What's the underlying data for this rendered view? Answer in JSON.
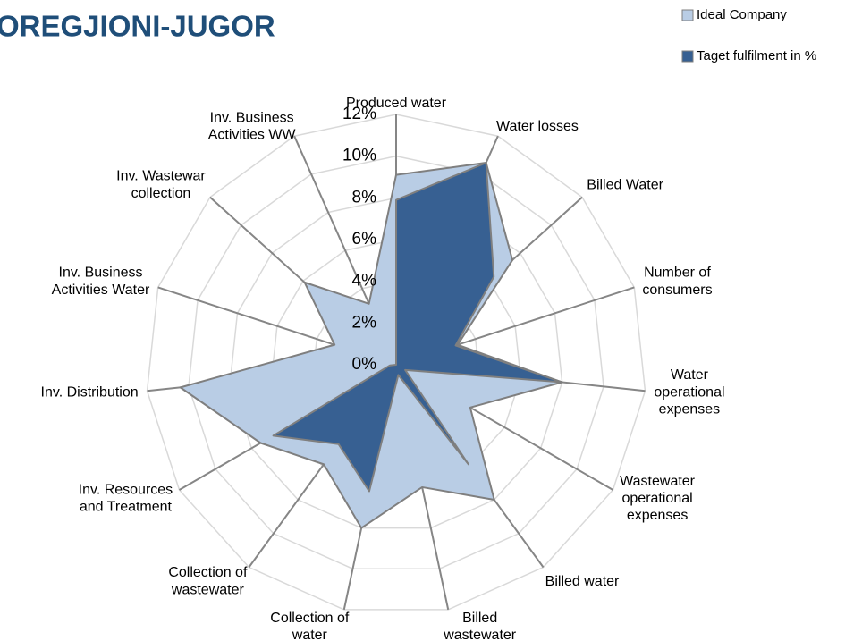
{
  "chart_data": {
    "type": "radar",
    "title": "OREGJIONI-JUGOR",
    "categories": [
      "Produced water",
      "Water losses",
      "Billed Water",
      "Number of\nconsumers",
      "Water\noperational\nexpenses",
      "Wastewater\noperational\nexpenses",
      "Billed water",
      "Billed\nwastewater",
      "Collection of\nwater",
      "Collection of\nwastewater",
      "Inv. Resources\nand Treatment",
      "Inv. Distribution",
      "Inv. Business\nActivities Water",
      "Inv. Wastewar\ncollection",
      "Inv. Business\nActivities WW"
    ],
    "series": [
      {
        "name": "Ideal Company",
        "color": "#b9cde5",
        "values": [
          9.1,
          10.6,
          7.5,
          3.1,
          8,
          4.1,
          8,
          6,
          8,
          5.9,
          7.5,
          10.4,
          3.1,
          5.9,
          3.2
        ]
      },
      {
        "name": "Taget fulfilment in %",
        "color": "#376092",
        "values": [
          7.9,
          10.6,
          6.3,
          3,
          8,
          0.5,
          5.9,
          0.5,
          6.2,
          4.7,
          6.8,
          0.3,
          0,
          0,
          0
        ]
      }
    ],
    "ylim": [
      0,
      12
    ],
    "yticks": [
      {
        "value": 0,
        "label": "0%"
      },
      {
        "value": 2,
        "label": "2%"
      },
      {
        "value": 4,
        "label": "4%"
      },
      {
        "value": 6,
        "label": "6%"
      },
      {
        "value": 8,
        "label": "8%"
      },
      {
        "value": 10,
        "label": "10%"
      },
      {
        "value": 12,
        "label": "12%"
      }
    ],
    "grid": true,
    "legend": "top-right"
  }
}
